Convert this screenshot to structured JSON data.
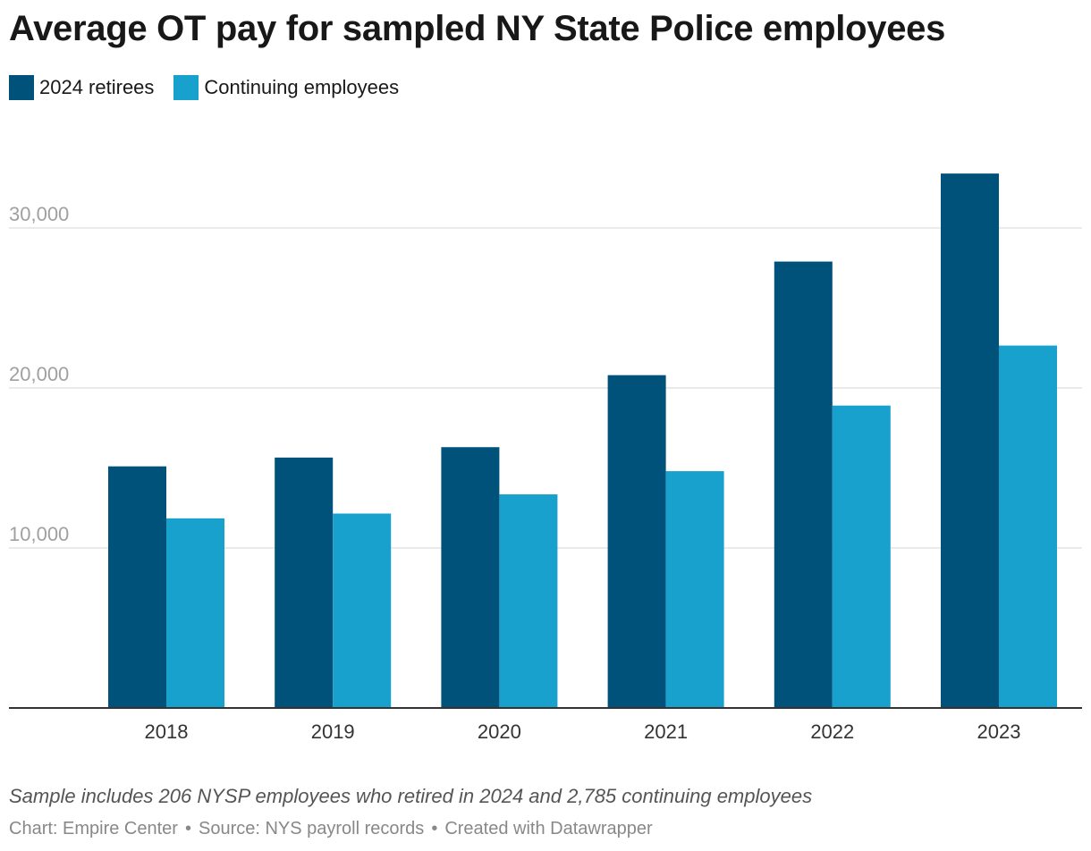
{
  "chart_data": {
    "type": "bar",
    "title": "Average OT pay for sampled NY State Police employees",
    "categories": [
      "2018",
      "2019",
      "2020",
      "2021",
      "2022",
      "2023"
    ],
    "series": [
      {
        "name": "2024 retirees",
        "color": "#00527a",
        "values": [
          15100,
          15650,
          16300,
          20800,
          27900,
          33400
        ]
      },
      {
        "name": "Continuing employees",
        "color": "#18a1cd",
        "values": [
          11850,
          12150,
          13350,
          14800,
          18900,
          22650
        ]
      }
    ],
    "y_ticks": [
      {
        "value": 10000,
        "label": "10,000"
      },
      {
        "value": 20000,
        "label": "20,000"
      },
      {
        "value": 30000,
        "label": "30,000"
      }
    ],
    "ylim": [
      0,
      37000
    ],
    "grid": true,
    "legend_position": "top-left",
    "notes": "Sample includes 206 NYSP employees who retired in 2024 and 2,785 continuing employees",
    "credit": [
      "Chart: Empire Center",
      "Source: NYS payroll records",
      "Created with Datawrapper"
    ]
  }
}
